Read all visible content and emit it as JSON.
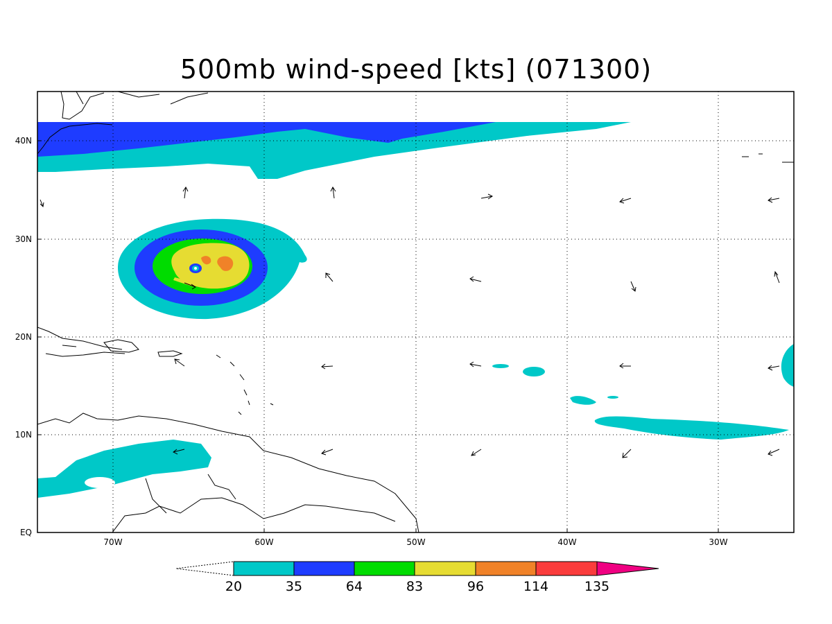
{
  "title": "500mb wind-speed [kts] (071300)",
  "lon_ticks": [
    "70W",
    "60W",
    "50W",
    "40W",
    "30W"
  ],
  "lat_ticks": [
    "EQ",
    "10N",
    "20N",
    "30N",
    "40N"
  ],
  "colorbar": {
    "labels": [
      "20",
      "35",
      "64",
      "83",
      "96",
      "114",
      "135"
    ],
    "colors": [
      "#00c8c8",
      "#1e3cff",
      "#00dc00",
      "#e6dc32",
      "#f08228",
      "#fa3c3c",
      "#f00082"
    ]
  },
  "contour_colors": {
    "c20": "#00c8c8",
    "c35": "#1e3cff",
    "c64": "#00dc00",
    "c83": "#e6dc32",
    "c96": "#f08228"
  }
}
